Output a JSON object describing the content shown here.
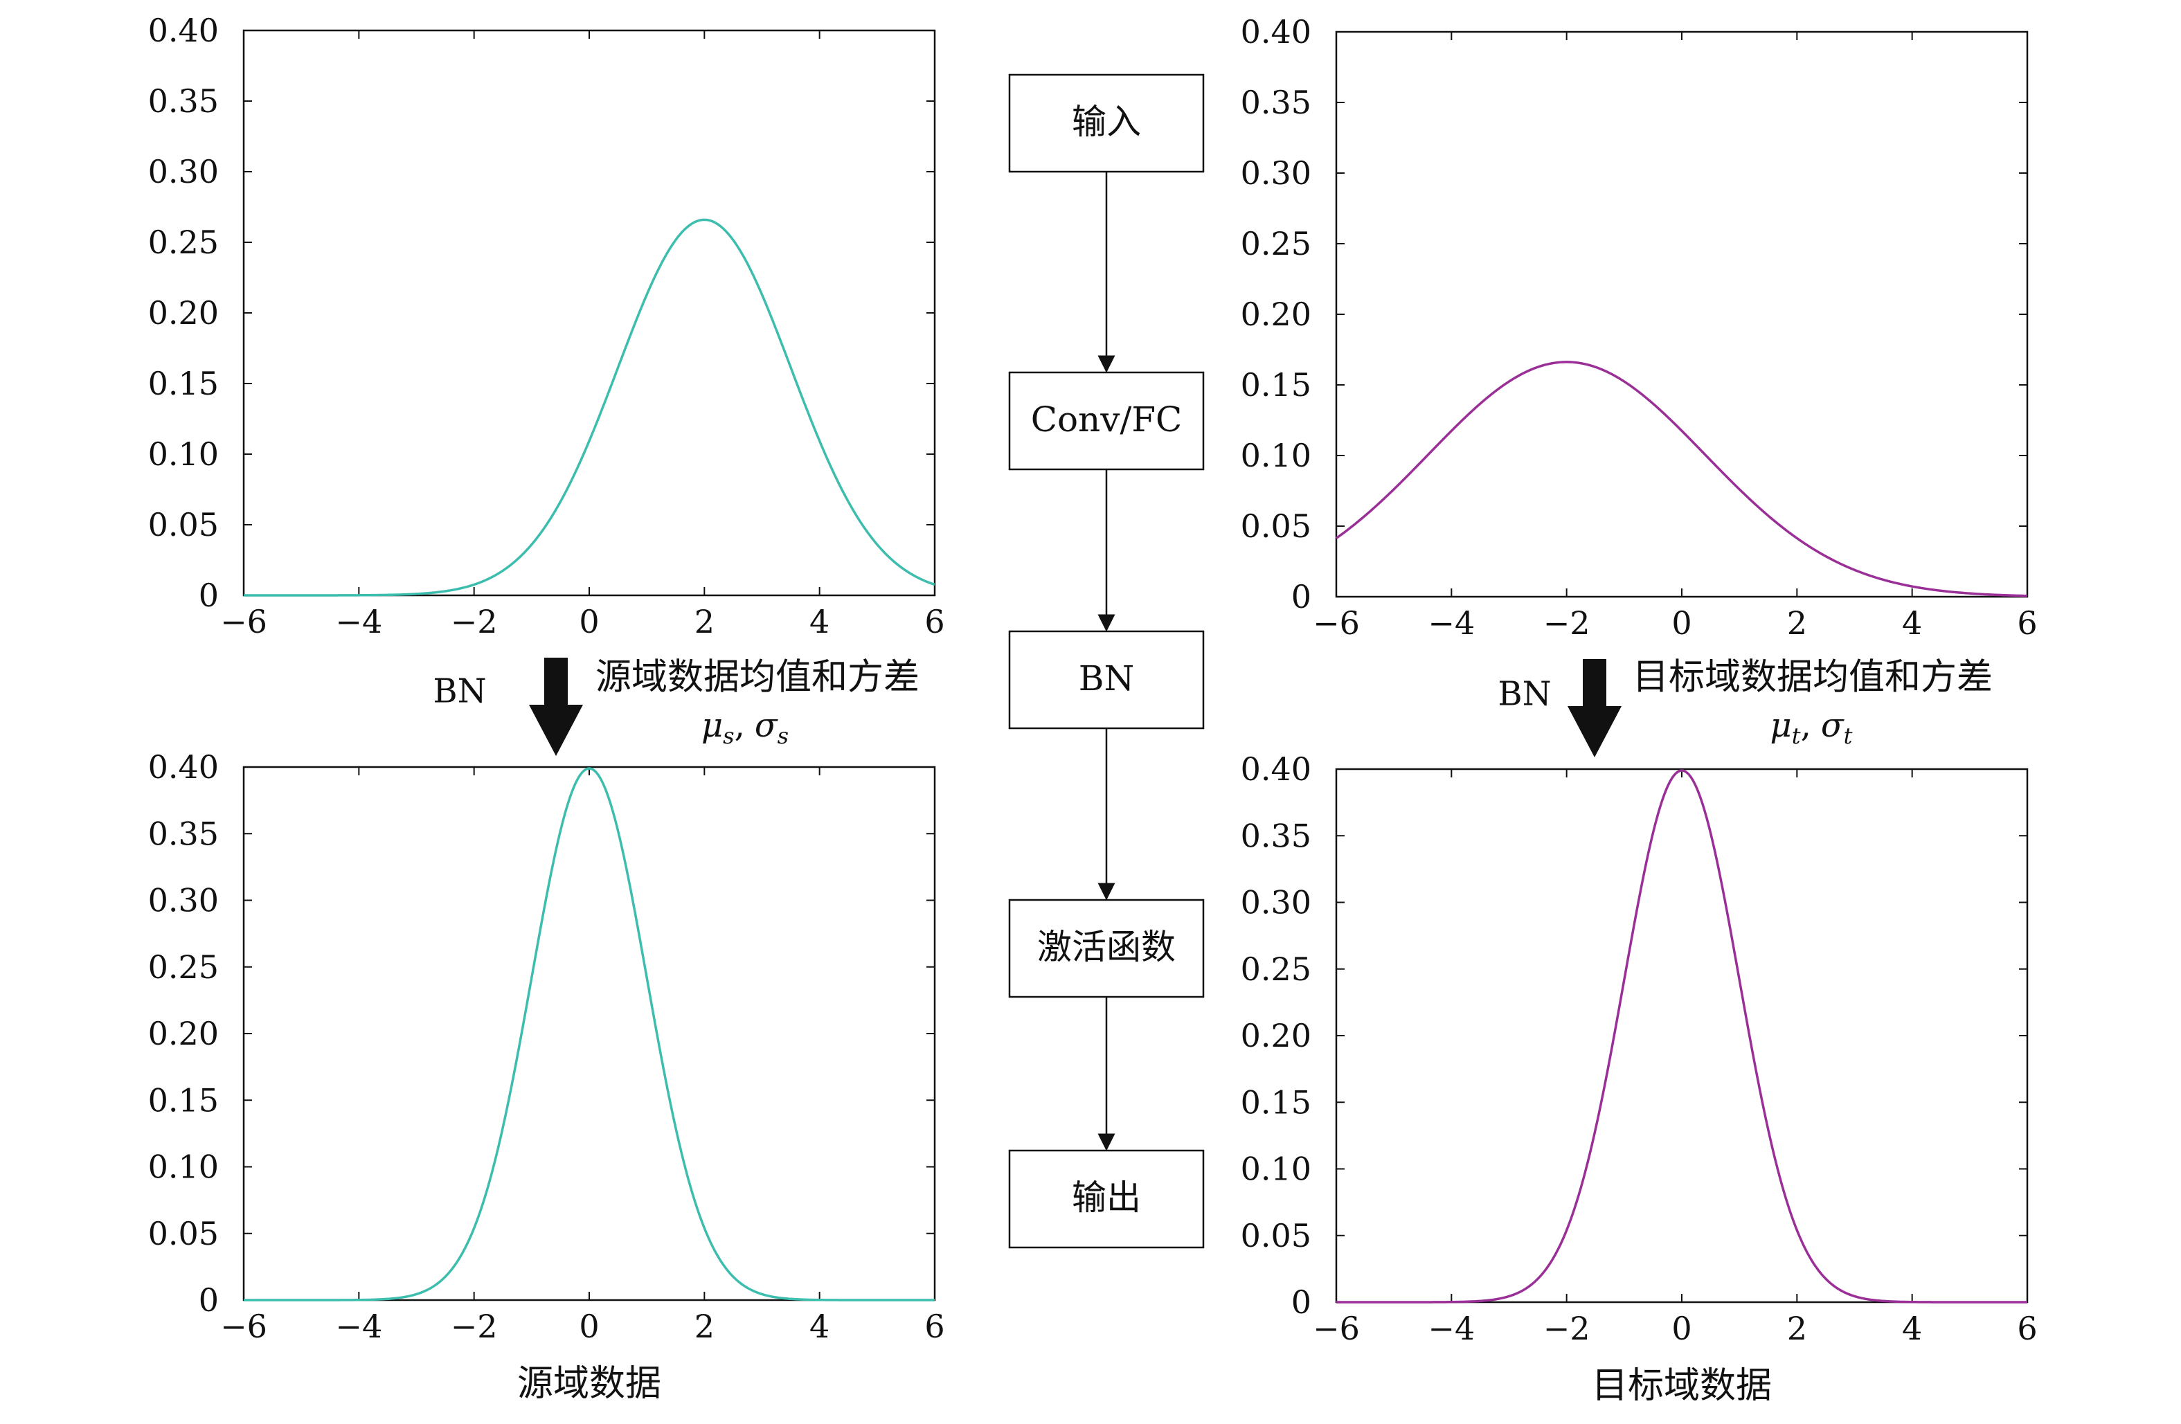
{
  "chart_data": [
    {
      "id": "source-before",
      "type": "line",
      "xlim": [
        -6,
        6
      ],
      "ylim": [
        0,
        0.4
      ],
      "xticks": [
        "−6",
        "−4",
        "−2",
        "0",
        "2",
        "4",
        "6"
      ],
      "yticks": [
        "0",
        "0.05",
        "0.10",
        "0.15",
        "0.20",
        "0.25",
        "0.30",
        "0.35",
        "0.40"
      ],
      "xlabel": "",
      "ylabel": "",
      "grid": false,
      "color": "#3dbdad",
      "series": [
        {
          "distribution": "normal",
          "mean": 2,
          "std": 1.5
        }
      ]
    },
    {
      "id": "target-before",
      "type": "line",
      "xlim": [
        -6,
        6
      ],
      "ylim": [
        0,
        0.4
      ],
      "xticks": [
        "−6",
        "−4",
        "−2",
        "0",
        "2",
        "4",
        "6"
      ],
      "yticks": [
        "0",
        "0.05",
        "0.10",
        "0.15",
        "0.20",
        "0.25",
        "0.30",
        "0.35",
        "0.40"
      ],
      "xlabel": "",
      "ylabel": "",
      "grid": false,
      "color": "#9a2f98",
      "series": [
        {
          "distribution": "normal",
          "mean": -2,
          "std": 2.4
        }
      ]
    },
    {
      "id": "source-after",
      "type": "line",
      "xlim": [
        -6,
        6
      ],
      "ylim": [
        0,
        0.4
      ],
      "xticks": [
        "−6",
        "−4",
        "−2",
        "0",
        "2",
        "4",
        "6"
      ],
      "yticks": [
        "0",
        "0.05",
        "0.10",
        "0.15",
        "0.20",
        "0.25",
        "0.30",
        "0.35",
        "0.40"
      ],
      "xlabel": "源域数据",
      "ylabel": "",
      "grid": false,
      "color": "#3dbdad",
      "series": [
        {
          "distribution": "normal",
          "mean": 0,
          "std": 1
        }
      ]
    },
    {
      "id": "target-after",
      "type": "line",
      "xlim": [
        -6,
        6
      ],
      "ylim": [
        0,
        0.4
      ],
      "xticks": [
        "−6",
        "−4",
        "−2",
        "0",
        "2",
        "4",
        "6"
      ],
      "yticks": [
        "0",
        "0.05",
        "0.10",
        "0.15",
        "0.20",
        "0.25",
        "0.30",
        "0.35",
        "0.40"
      ],
      "xlabel": "目标域数据",
      "ylabel": "",
      "grid": false,
      "color": "#9a2f98",
      "series": [
        {
          "distribution": "normal",
          "mean": 0,
          "std": 1
        }
      ]
    }
  ],
  "flowchart": {
    "nodes": [
      "输入",
      "Conv/FC",
      "BN",
      "激活函数",
      "输出"
    ]
  },
  "annotations": {
    "source": {
      "bn_label": "BN",
      "stats_label": "源域数据均值和方差",
      "mu": "μ",
      "mu_sub": "s",
      "sigma": "σ",
      "sigma_sub": "s",
      "separator": ","
    },
    "target": {
      "bn_label": "BN",
      "stats_label": "目标域数据均值和方差",
      "mu": "μ",
      "mu_sub": "t",
      "sigma": "σ",
      "sigma_sub": "t",
      "separator": ","
    }
  }
}
